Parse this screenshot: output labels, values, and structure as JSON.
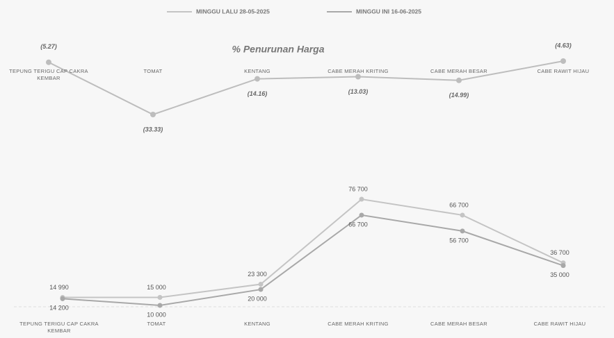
{
  "chart_data": [
    {
      "type": "line",
      "title": "% Penurunan Harga",
      "categories": [
        "TEPUNG TERIGU CAP CAKRA KEMBAR",
        "TOMAT",
        "KENTANG",
        "CABE MERAH KRITING",
        "CABE MERAH BESAR",
        "CABE RAWIT HIJAU"
      ],
      "values": [
        -5.27,
        -33.33,
        -14.16,
        -13.03,
        -14.99,
        -4.63
      ],
      "value_labels": [
        "(5.27)",
        "(33.33)",
        "(14.16)",
        "(13.03)",
        "(14.99)",
        "(4.63)"
      ],
      "color": "#bdbdbd"
    },
    {
      "type": "line",
      "categories": [
        "TEPUNG TERIGU CAP CAKRA KEMBAR",
        "TOMAT",
        "KENTANG",
        "CABE MERAH KRITING",
        "CABE MERAH BESAR",
        "CABE RAWIT HIJAU"
      ],
      "series": [
        {
          "name": "MINGGU LALU 28-05-2025",
          "color": "#c4c4c4",
          "values": [
            14990,
            15000,
            23300,
            76700,
            66700,
            36700
          ],
          "value_labels": [
            "14 990",
            "15 000",
            "23 300",
            "76 700",
            "66 700",
            "36 700"
          ]
        },
        {
          "name": "MINGGU INI 16-06-2025",
          "color": "#a8a8a8",
          "values": [
            14200,
            10000,
            20000,
            66700,
            56700,
            35000
          ],
          "value_labels": [
            "14 200",
            "10 000",
            "20 000",
            "66 700",
            "56 700",
            "35 000"
          ]
        }
      ]
    }
  ]
}
